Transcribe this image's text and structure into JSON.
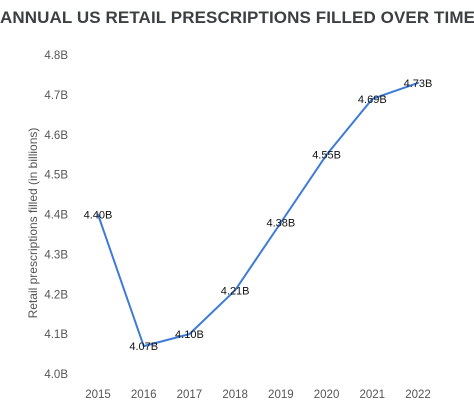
{
  "chart_data": {
    "type": "line",
    "title": "ANNUAL US RETAIL PRESCRIPTIONS FILLED OVER TIME",
    "xlabel": "",
    "ylabel": "Retail prescriptions filled (in billions)",
    "ylim": [
      4.0,
      4.8
    ],
    "yticks": [
      "4.0B",
      "4.1B",
      "4.2B",
      "4.3B",
      "4.4B",
      "4.5B",
      "4.6B",
      "4.7B",
      "4.8B"
    ],
    "grid": false,
    "legend": "none",
    "line_color": "#3d7bd9",
    "categories": [
      "2015",
      "2016",
      "2017",
      "2018",
      "2019",
      "2020",
      "2021",
      "2022"
    ],
    "series": [
      {
        "values": [
          4.4,
          4.07,
          4.1,
          4.21,
          4.38,
          4.55,
          4.69,
          4.73
        ],
        "labels": [
          "4.40B",
          "4.07B",
          "4.10B",
          "4.21B",
          "4.38B",
          "4.55B",
          "4.69B",
          "4.73B"
        ]
      }
    ]
  }
}
